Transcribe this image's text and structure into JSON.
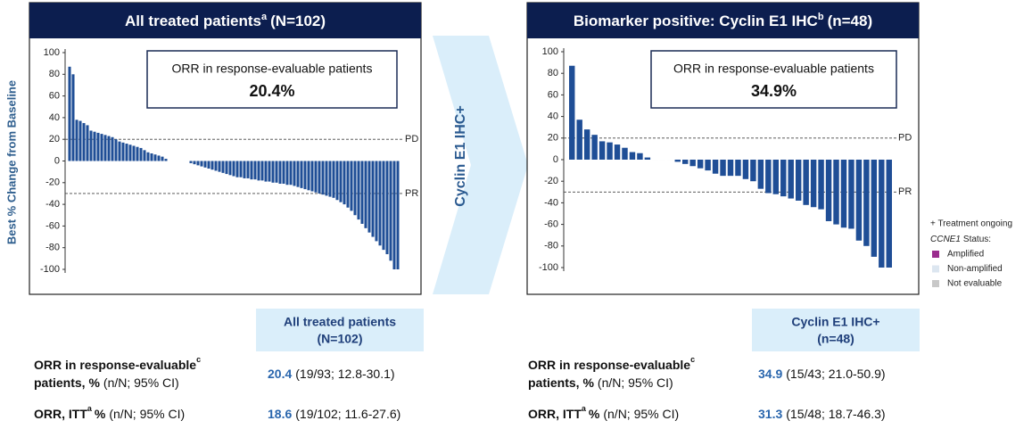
{
  "chart_data": [
    {
      "type": "bar",
      "title": "All treated patients",
      "title_superscript": "a",
      "title_suffix": "(N=102)",
      "ylabel": "Best % Change from Baseline",
      "annotation": {
        "text": "ORR in response-evaluable patients",
        "value": "20.4%"
      },
      "ref_lines": [
        {
          "value": 20,
          "label": "PD"
        },
        {
          "value": -30,
          "label": "PR"
        }
      ],
      "color": "#1f4e96",
      "values": [
        87,
        80,
        38,
        37,
        35,
        33,
        28,
        27,
        26,
        25,
        24,
        23,
        22,
        20,
        18,
        17,
        16,
        15,
        14,
        13,
        12,
        10,
        8,
        7,
        6,
        5,
        4,
        2,
        0,
        0,
        0,
        0,
        0,
        0,
        -2,
        -3,
        -4,
        -5,
        -6,
        -7,
        -8,
        -9,
        -10,
        -11,
        -12,
        -13,
        -14,
        -15,
        -15,
        -16,
        -16,
        -17,
        -17,
        -18,
        -18,
        -19,
        -19,
        -20,
        -20,
        -21,
        -21,
        -22,
        -22,
        -23,
        -24,
        -25,
        -26,
        -27,
        -28,
        -29,
        -30,
        -31,
        -32,
        -33,
        -34,
        -36,
        -38,
        -40,
        -43,
        -46,
        -50,
        -54,
        -58,
        -62,
        -66,
        -70,
        -74,
        -78,
        -82,
        -86,
        -92,
        -100,
        -100
      ],
      "ylim": [
        -100,
        100
      ],
      "yticks": [
        -100,
        -80,
        -60,
        -40,
        -20,
        0,
        20,
        40,
        60,
        80,
        100
      ]
    },
    {
      "type": "bar",
      "title": "Biomarker positive: Cyclin E1 IHC",
      "title_superscript": "b",
      "title_suffix": "(n=48)",
      "annotation": {
        "text": "ORR in response-evaluable patients",
        "value": "34.9%"
      },
      "ref_lines": [
        {
          "value": 20,
          "label": "PD"
        },
        {
          "value": -30,
          "label": "PR"
        }
      ],
      "color": "#1f4e96",
      "values": [
        87,
        37,
        28,
        23,
        17,
        16,
        14,
        11,
        7,
        6,
        2,
        0,
        0,
        0,
        -2,
        -4,
        -6,
        -8,
        -10,
        -13,
        -15,
        -15,
        -15,
        -18,
        -20,
        -27,
        -31,
        -32,
        -34,
        -36,
        -38,
        -42,
        -44,
        -46,
        -57,
        -60,
        -63,
        -64,
        -75,
        -80,
        -90,
        -100,
        -100
      ],
      "ylim": [
        -100,
        100
      ],
      "yticks": [
        -100,
        -80,
        -60,
        -40,
        -20,
        0,
        20,
        40,
        60,
        80,
        100
      ]
    }
  ],
  "arrow_label": "Cyclin E1 IHC+",
  "legend": {
    "ongoing": "+ Treatment ongoing",
    "gene": "CCNE1",
    "status": "Status:",
    "items": [
      {
        "label": "Amplified",
        "color": "#9b2d8e"
      },
      {
        "label": "Non-amplified",
        "color": "#dce6f0"
      },
      {
        "label": "Not evaluable",
        "color": "#c8c8c8"
      }
    ]
  },
  "tables": [
    {
      "header": [
        "All treated patients",
        "(N=102)"
      ],
      "rows": [
        {
          "label": [
            "ORR in response-evaluable",
            "c",
            "patients, %",
            "(n/N; 95% CI)"
          ],
          "value": "20.4",
          "detail": "(19/93; 12.8-30.1)"
        },
        {
          "label": [
            "ORR, ITT",
            "a",
            "%",
            "(n/N; 95% CI)"
          ],
          "value": "18.6",
          "detail": "(19/102; 11.6-27.6)"
        }
      ]
    },
    {
      "header": [
        "Cyclin E1 IHC+",
        "(n=48)"
      ],
      "rows": [
        {
          "label": [
            "ORR in response-evaluable",
            "c",
            "patients, %",
            "(n/N; 95% CI)"
          ],
          "value": "34.9",
          "detail": "(15/43; 21.0-50.9)"
        },
        {
          "label": [
            "ORR, ITT",
            "a",
            "%",
            "(n/N; 95% CI)"
          ],
          "value": "31.3",
          "detail": "(15/48; 18.7-46.3)"
        }
      ]
    }
  ]
}
